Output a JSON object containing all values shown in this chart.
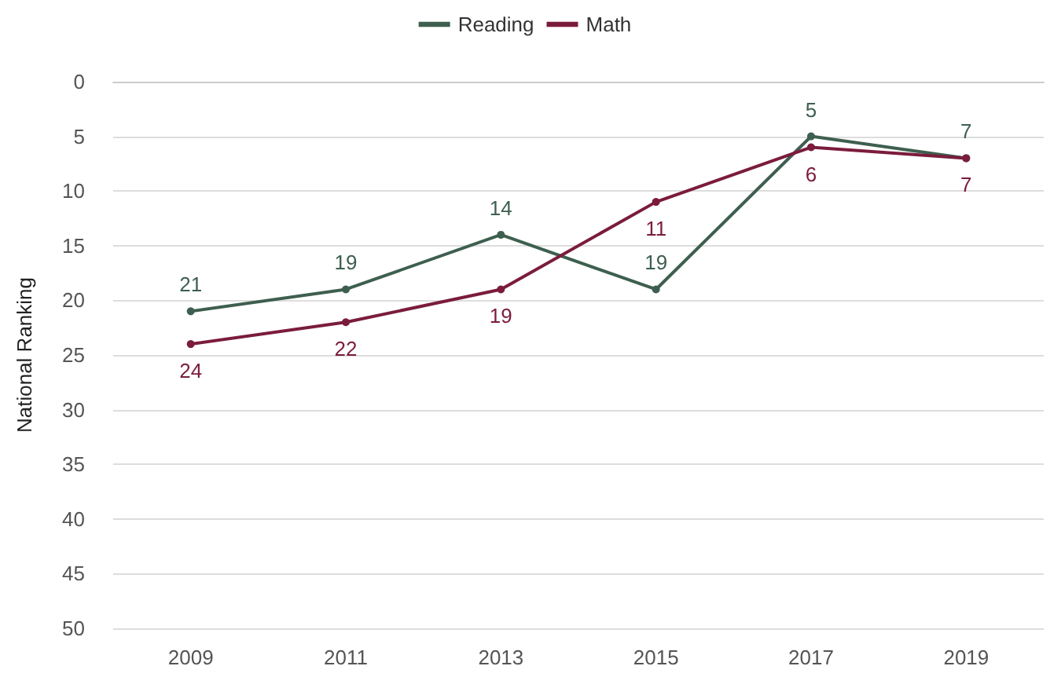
{
  "chart_data": {
    "type": "line",
    "categories": [
      "2009",
      "2011",
      "2013",
      "2015",
      "2017",
      "2019"
    ],
    "series": [
      {
        "name": "Reading",
        "color": "#3e5f4f",
        "values": [
          21,
          19,
          14,
          19,
          5,
          7
        ]
      },
      {
        "name": "Math",
        "color": "#7b1c3c",
        "values": [
          24,
          22,
          19,
          11,
          6,
          7
        ]
      }
    ],
    "ylabel": "National Ranking",
    "ylim": [
      50,
      0
    ],
    "yticks": [
      0,
      5,
      10,
      15,
      20,
      25,
      30,
      35,
      40,
      45,
      50
    ],
    "grid": "y",
    "legend": "top",
    "marker": "circle",
    "data_labels": true,
    "line_style": "solid"
  }
}
